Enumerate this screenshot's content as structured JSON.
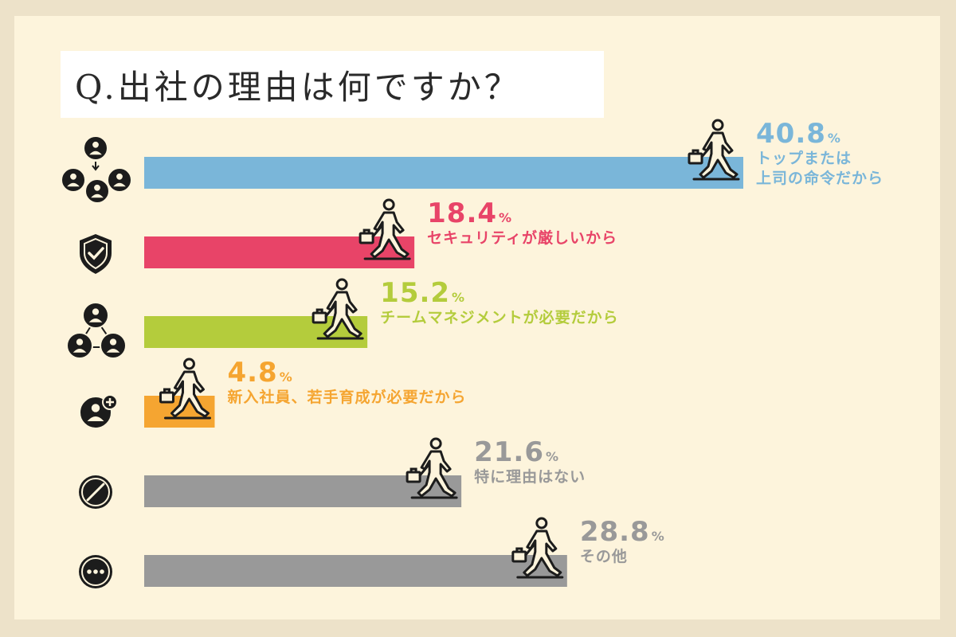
{
  "title": "Q.出社の理由は何ですか？",
  "chart_data": {
    "type": "bar",
    "orientation": "horizontal",
    "title": "Q.出社の理由は何ですか？",
    "categories": [
      "トップまたは上司の命令だから",
      "セキュリティが厳しいから",
      "チームマネジメントが必要だから",
      "新入社員、若手育成が必要だから",
      "特に理由はない",
      "その他"
    ],
    "values": [
      40.8,
      18.4,
      15.2,
      4.8,
      21.6,
      28.8
    ],
    "unit": "%",
    "xlim": [
      0,
      45
    ],
    "grid": false,
    "legend": "none"
  },
  "rows": [
    {
      "value_text": "40.8",
      "label_lines": [
        "トップまたは",
        "上司の命令だから"
      ],
      "color": "#7ab6d9",
      "icon": "hierarchy-icon"
    },
    {
      "value_text": "18.4",
      "label_lines": [
        "セキュリティが厳しいから"
      ],
      "color": "#e84468",
      "icon": "shield-check-icon"
    },
    {
      "value_text": "15.2",
      "label_lines": [
        "チームマネジメントが必要だから"
      ],
      "color": "#b4cc3c",
      "icon": "team-network-icon"
    },
    {
      "value_text": "4.8",
      "label_lines": [
        "新入社員、若手育成が必要だから"
      ],
      "color": "#f5a531",
      "icon": "add-user-icon"
    },
    {
      "value_text": "21.6",
      "label_lines": [
        "特に理由はない"
      ],
      "color": "#999999",
      "icon": "no-reason-icon"
    },
    {
      "value_text": "28.8",
      "label_lines": [
        "その他"
      ],
      "color": "#999999",
      "icon": "more-icon"
    }
  ],
  "percent_sign": "%",
  "walker_icon": "walking-businessman-icon"
}
